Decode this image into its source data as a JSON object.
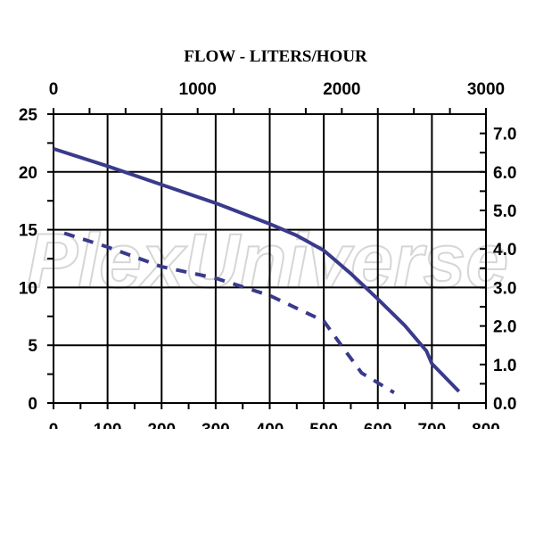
{
  "chart_data": {
    "type": "line",
    "title": "FLOW - LITERS/HOUR",
    "xlim": [
      0,
      800
    ],
    "ylim": [
      0,
      25
    ],
    "x_ticks": [
      "0",
      "100",
      "200",
      "300",
      "400",
      "500",
      "600",
      "700",
      "800"
    ],
    "x_tick_values": [
      0,
      100,
      200,
      300,
      400,
      500,
      600,
      700,
      800
    ],
    "top_ticks": [
      "0",
      "1000",
      "2000",
      "3000"
    ],
    "top_tick_values": [
      0,
      1000,
      2000,
      3000
    ],
    "top_lim": [
      0,
      3000
    ],
    "y_ticks": [
      "0",
      "5",
      "10",
      "15",
      "20",
      "25"
    ],
    "y_tick_values": [
      0,
      5,
      10,
      15,
      20,
      25
    ],
    "right_ticks": [
      "0.0",
      "1.0",
      "2.0",
      "3.0",
      "4.0",
      "5.0",
      "6.0",
      "7.0"
    ],
    "right_tick_values": [
      0,
      1,
      2,
      3,
      4,
      5,
      6,
      7
    ],
    "right_lim": [
      0,
      7.5
    ],
    "grid": true,
    "series_color": "#3a3a8c",
    "series": [
      {
        "style": "solid",
        "x": [
          0,
          100,
          200,
          300,
          400,
          450,
          500,
          550,
          600,
          650,
          690,
          700,
          750
        ],
        "y": [
          22,
          20.5,
          18.9,
          17.3,
          15.5,
          14.5,
          13.2,
          11.2,
          9.0,
          6.7,
          4.5,
          3.4,
          1.0
        ]
      },
      {
        "style": "dashed",
        "x": [
          20,
          100,
          200,
          300,
          400,
          500,
          540,
          570,
          630
        ],
        "y": [
          14.7,
          13.5,
          11.8,
          10.8,
          9.3,
          7.1,
          4.5,
          2.6,
          0.9
        ]
      }
    ]
  },
  "watermark": "PlexUniverse"
}
